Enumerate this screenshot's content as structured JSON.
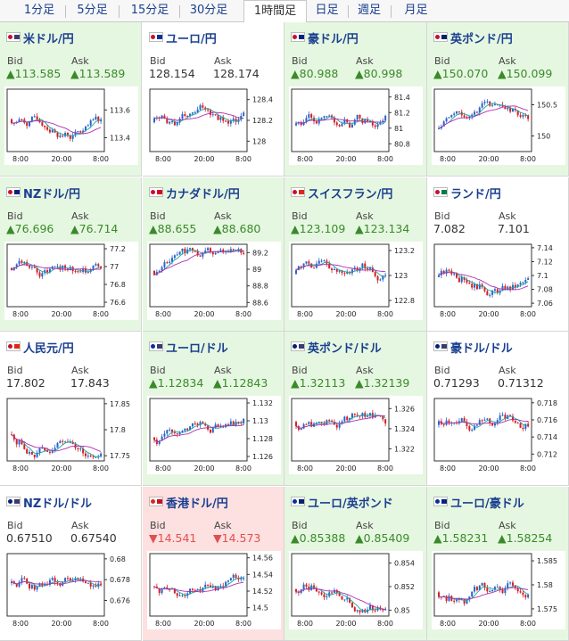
{
  "tabs": [
    {
      "label": "1分足"
    },
    {
      "label": "5分足"
    },
    {
      "label": "15分足"
    },
    {
      "label": "30分足"
    },
    {
      "label": "1時間足"
    },
    {
      "label": "日足"
    },
    {
      "label": "週足"
    },
    {
      "label": "月足"
    }
  ],
  "active_tab": "1時間足",
  "labels": {
    "bid": "Bid",
    "ask": "Ask"
  },
  "colors": {
    "up_bg": "#e6f7e1",
    "down_bg": "#fde0e0",
    "up_text": "#3a8a2a",
    "down_text": "#e05050",
    "candle_up": "#2a64c8",
    "candle_down": "#d42020",
    "ma_short": "#1aa8a0",
    "ma_long": "#b030b0"
  },
  "x_ticks": [
    "8:00",
    "20:00",
    "8:00"
  ],
  "pairs": [
    {
      "name": "米ドル/円",
      "flag": "usd-jpy-flag-icon",
      "dir": "up",
      "bid": "▲113.585",
      "ask": "▲113.589",
      "yticks": [
        "113.6",
        "113.4"
      ],
      "ylim": [
        113.3,
        113.75
      ]
    },
    {
      "name": "ユーロ/円",
      "flag": "eur-jpy-flag-icon",
      "dir": "flat",
      "bid": "128.154",
      "ask": "128.174",
      "yticks": [
        "128.4",
        "128.2",
        "128"
      ],
      "ylim": [
        127.9,
        128.5
      ]
    },
    {
      "name": "豪ドル/円",
      "flag": "aud-jpy-flag-icon",
      "dir": "up",
      "bid": "▲80.988",
      "ask": "▲80.998",
      "yticks": [
        "81.4",
        "81.2",
        "81",
        "80.8"
      ],
      "ylim": [
        80.7,
        81.5
      ]
    },
    {
      "name": "英ポンド/円",
      "flag": "gbp-jpy-flag-icon",
      "dir": "up",
      "bid": "▲150.070",
      "ask": "▲150.099",
      "yticks": [
        "150.5",
        "150"
      ],
      "ylim": [
        149.75,
        150.75
      ]
    },
    {
      "name": "NZドル/円",
      "flag": "nzd-jpy-flag-icon",
      "dir": "up",
      "bid": "▲76.696",
      "ask": "▲76.714",
      "yticks": [
        "77.2",
        "77",
        "76.8",
        "76.6"
      ],
      "ylim": [
        76.55,
        77.25
      ]
    },
    {
      "name": "カナダドル/円",
      "flag": "cad-jpy-flag-icon",
      "dir": "up",
      "bid": "▲88.655",
      "ask": "▲88.680",
      "yticks": [
        "89.2",
        "89",
        "88.8",
        "88.6"
      ],
      "ylim": [
        88.55,
        89.3
      ]
    },
    {
      "name": "スイスフラン/円",
      "flag": "chf-jpy-flag-icon",
      "dir": "up",
      "bid": "▲123.109",
      "ask": "▲123.134",
      "yticks": [
        "123.2",
        "123",
        "122.8"
      ],
      "ylim": [
        122.75,
        123.25
      ]
    },
    {
      "name": "ランド/円",
      "flag": "zar-jpy-flag-icon",
      "dir": "flat",
      "bid": "7.082",
      "ask": "7.101",
      "yticks": [
        "7.14",
        "7.12",
        "7.1",
        "7.08",
        "7.06"
      ],
      "ylim": [
        7.055,
        7.145
      ]
    },
    {
      "name": "人民元/円",
      "flag": "cnh-jpy-flag-icon",
      "dir": "flat",
      "bid": "17.802",
      "ask": "17.843",
      "yticks": [
        "17.85",
        "17.8",
        "17.75"
      ],
      "ylim": [
        17.74,
        17.86
      ]
    },
    {
      "name": "ユーロ/ドル",
      "flag": "eur-usd-flag-icon",
      "dir": "up",
      "bid": "▲1.12834",
      "ask": "▲1.12843",
      "yticks": [
        "1.132",
        "1.13",
        "1.128",
        "1.126"
      ],
      "ylim": [
        1.1255,
        1.1325
      ]
    },
    {
      "name": "英ポンド/ドル",
      "flag": "gbp-usd-flag-icon",
      "dir": "up",
      "bid": "▲1.32113",
      "ask": "▲1.32139",
      "yticks": [
        "1.326",
        "1.324",
        "1.322"
      ],
      "ylim": [
        1.3208,
        1.327
      ]
    },
    {
      "name": "豪ドル/ドル",
      "flag": "aud-usd-flag-icon",
      "dir": "flat",
      "bid": "0.71293",
      "ask": "0.71312",
      "yticks": [
        "0.718",
        "0.716",
        "0.714",
        "0.712"
      ],
      "ylim": [
        0.7112,
        0.7185
      ]
    },
    {
      "name": "NZドル/ドル",
      "flag": "nzd-usd-flag-icon",
      "dir": "flat",
      "bid": "0.67510",
      "ask": "0.67540",
      "yticks": [
        "0.68",
        "0.678",
        "0.676"
      ],
      "ylim": [
        0.6745,
        0.6805
      ]
    },
    {
      "name": "香港ドル/円",
      "flag": "hkd-jpy-flag-icon",
      "dir": "down",
      "bid": "▼14.541",
      "ask": "▼14.573",
      "yticks": [
        "14.56",
        "14.54",
        "14.52",
        "14.5"
      ],
      "ylim": [
        14.49,
        14.565
      ]
    },
    {
      "name": "ユーロ/英ポンド",
      "flag": "eur-gbp-flag-icon",
      "dir": "up",
      "bid": "▲0.85388",
      "ask": "▲0.85409",
      "yticks": [
        "0.854",
        "0.852",
        "0.85"
      ],
      "ylim": [
        0.8495,
        0.8548
      ]
    },
    {
      "name": "ユーロ/豪ドル",
      "flag": "eur-aud-flag-icon",
      "dir": "up",
      "bid": "▲1.58231",
      "ask": "▲1.58254",
      "yticks": [
        "1.585",
        "1.58",
        "1.575"
      ],
      "ylim": [
        1.5735,
        1.5865
      ]
    }
  ]
}
